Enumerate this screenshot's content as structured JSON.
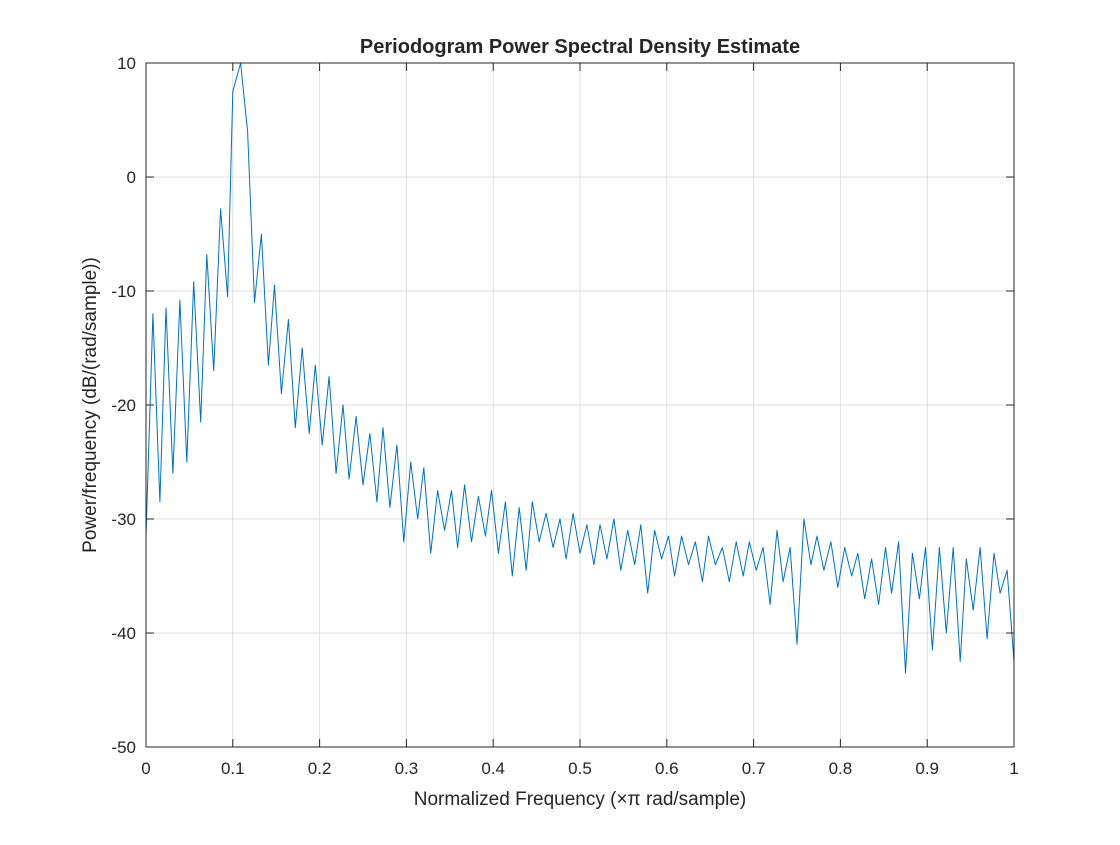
{
  "chart_data": {
    "type": "line",
    "title": "Periodogram Power Spectral Density Estimate",
    "xlabel": "Normalized Frequency  (×π rad/sample)",
    "ylabel": "Power/frequency (dB/(rad/sample))",
    "xlim": [
      0,
      1
    ],
    "ylim": [
      -50,
      10
    ],
    "xticks": [
      0,
      0.1,
      0.2,
      0.3,
      0.4,
      0.5,
      0.6,
      0.7,
      0.8,
      0.9,
      1
    ],
    "xtick_labels": [
      "0",
      "0.1",
      "0.2",
      "0.3",
      "0.4",
      "0.5",
      "0.6",
      "0.7",
      "0.8",
      "0.9",
      "1"
    ],
    "yticks": [
      -50,
      -40,
      -30,
      -20,
      -10,
      0,
      10
    ],
    "ytick_labels": [
      "-50",
      "-40",
      "-30",
      "-20",
      "-10",
      "0",
      "10"
    ],
    "grid": true,
    "series": [
      {
        "color": "#0072BD",
        "x": [
          0,
          0.008,
          0.016,
          0.023,
          0.031,
          0.039,
          0.047,
          0.055,
          0.063,
          0.07,
          0.078,
          0.086,
          0.094,
          0.1,
          0.109,
          0.117,
          0.125,
          0.133,
          0.141,
          0.148,
          0.156,
          0.164,
          0.172,
          0.18,
          0.188,
          0.195,
          0.203,
          0.211,
          0.219,
          0.227,
          0.234,
          0.242,
          0.25,
          0.258,
          0.266,
          0.273,
          0.281,
          0.289,
          0.297,
          0.305,
          0.313,
          0.32,
          0.328,
          0.336,
          0.344,
          0.352,
          0.359,
          0.367,
          0.375,
          0.383,
          0.391,
          0.398,
          0.406,
          0.414,
          0.422,
          0.43,
          0.438,
          0.445,
          0.453,
          0.461,
          0.469,
          0.477,
          0.484,
          0.492,
          0.5,
          0.508,
          0.516,
          0.523,
          0.531,
          0.539,
          0.547,
          0.555,
          0.563,
          0.57,
          0.578,
          0.586,
          0.594,
          0.602,
          0.609,
          0.617,
          0.625,
          0.633,
          0.641,
          0.648,
          0.656,
          0.664,
          0.672,
          0.68,
          0.688,
          0.695,
          0.703,
          0.711,
          0.719,
          0.727,
          0.734,
          0.742,
          0.75,
          0.758,
          0.766,
          0.773,
          0.781,
          0.789,
          0.797,
          0.805,
          0.813,
          0.82,
          0.828,
          0.836,
          0.844,
          0.852,
          0.859,
          0.867,
          0.875,
          0.883,
          0.891,
          0.898,
          0.906,
          0.914,
          0.922,
          0.93,
          0.938,
          0.945,
          0.953,
          0.961,
          0.969,
          0.977,
          0.984,
          0.992,
          1.0
        ],
        "y": [
          -31.5,
          -12.0,
          -28.5,
          -11.5,
          -26.0,
          -10.8,
          -25.0,
          -9.2,
          -21.5,
          -6.8,
          -17.0,
          -2.8,
          -10.5,
          7.5,
          10.0,
          4.0,
          -11.0,
          -5.0,
          -16.5,
          -9.5,
          -19.0,
          -12.5,
          -22.0,
          -15.0,
          -22.5,
          -16.5,
          -23.5,
          -17.5,
          -26.0,
          -20.0,
          -26.5,
          -21.0,
          -27.0,
          -22.5,
          -28.5,
          -22.0,
          -29.0,
          -23.5,
          -32.0,
          -25.0,
          -30.0,
          -25.5,
          -33.0,
          -27.5,
          -31.0,
          -27.5,
          -32.5,
          -27.0,
          -32.0,
          -28.0,
          -31.5,
          -27.5,
          -33.0,
          -28.5,
          -35.0,
          -29.0,
          -34.5,
          -28.5,
          -32.0,
          -29.5,
          -32.5,
          -30.0,
          -33.5,
          -29.5,
          -33.0,
          -30.5,
          -34.0,
          -30.5,
          -33.5,
          -30.0,
          -34.5,
          -31.0,
          -34.0,
          -30.5,
          -36.5,
          -31.0,
          -33.5,
          -31.5,
          -35.0,
          -31.5,
          -34.0,
          -32.0,
          -35.5,
          -31.5,
          -34.0,
          -32.5,
          -35.5,
          -32.0,
          -35.0,
          -32.0,
          -34.5,
          -32.5,
          -37.5,
          -31.0,
          -35.5,
          -32.5,
          -41.0,
          -30.0,
          -34.0,
          -31.5,
          -34.5,
          -32.0,
          -36.0,
          -32.5,
          -35.0,
          -33.0,
          -37.0,
          -33.5,
          -37.5,
          -32.5,
          -36.5,
          -32.0,
          -43.5,
          -33.0,
          -37.0,
          -32.5,
          -41.5,
          -32.5,
          -40.0,
          -32.5,
          -42.5,
          -33.5,
          -38.0,
          -32.5,
          -40.5,
          -33.0,
          -36.5,
          -34.5,
          -42.5
        ]
      }
    ]
  }
}
